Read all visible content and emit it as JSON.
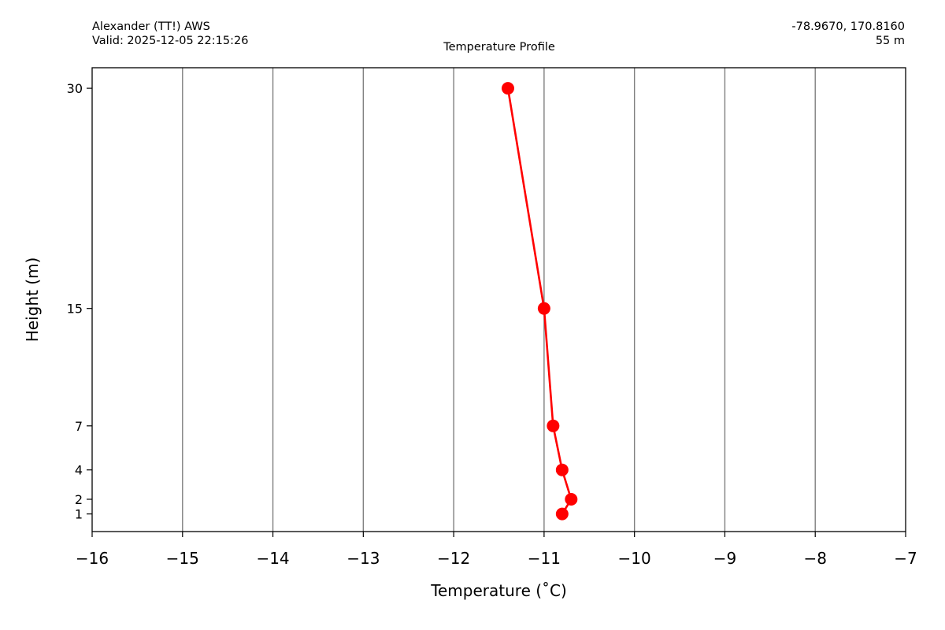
{
  "header": {
    "station": "Alexander (TT!) AWS",
    "valid": "Valid: 2025-12-05 22:15:26",
    "title": "Temperature Profile",
    "coords": "-78.9670, 170.8160",
    "elevation": "55 m"
  },
  "chart_data": {
    "type": "line",
    "title": "Temperature Profile",
    "xlabel": "Temperature ($^\\circ$C)",
    "xlabel_display": "Temperature (˚C)",
    "ylabel": "Height (m)",
    "xlim": [
      -16,
      -7
    ],
    "ylim": [
      -0.2,
      31.4
    ],
    "x_ticks": [
      -16,
      -15,
      -14,
      -13,
      -12,
      -11,
      -10,
      -9,
      -8,
      -7
    ],
    "x_tick_labels": [
      "−16",
      "−15",
      "−14",
      "−13",
      "−12",
      "−11",
      "−10",
      "−9",
      "−8",
      "−7"
    ],
    "y_ticks": [
      1,
      2,
      4,
      7,
      15,
      30
    ],
    "y_tick_labels": [
      "1",
      "2",
      "4",
      "7",
      "15",
      "30"
    ],
    "grid": "vertical lines at x ticks",
    "line_color": "#ff0000",
    "series": [
      {
        "points": [
          {
            "x": -10.8,
            "y": 1
          },
          {
            "x": -10.7,
            "y": 2
          },
          {
            "x": -10.8,
            "y": 4
          },
          {
            "x": -10.9,
            "y": 7
          },
          {
            "x": -11.0,
            "y": 15
          },
          {
            "x": -11.4,
            "y": 30
          }
        ]
      }
    ]
  }
}
